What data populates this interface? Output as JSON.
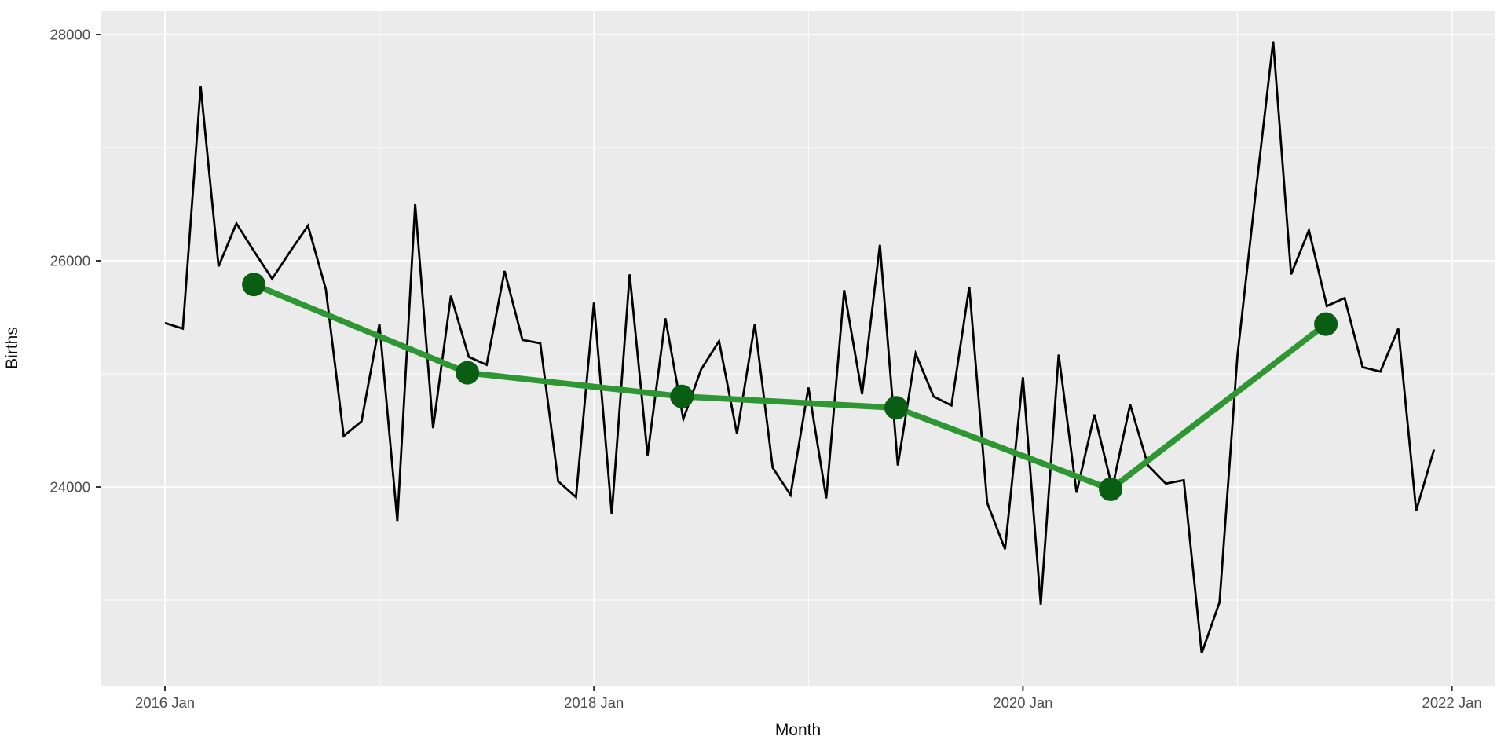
{
  "chart_data": {
    "type": "line",
    "title": "",
    "xlabel": "Month",
    "ylabel": "Births",
    "grid": true,
    "legend": "none",
    "panel_bg": "#EBEBEB",
    "gridline_color": "#FFFFFF",
    "tick_mark_color": "#333333",
    "tick_label_color": "#4d4d4d",
    "x_axis": {
      "tick_labels": [
        "2016 Jan",
        "2018 Jan",
        "2020 Jan",
        "2022 Jan"
      ],
      "tick_month_indices": [
        0,
        24,
        48,
        72
      ],
      "minor_month_indices": [
        12,
        36,
        60
      ],
      "xlim_month_indices": [
        -3.55,
        75.55
      ]
    },
    "y_axis": {
      "tick_labels": [
        "24000",
        "26000",
        "28000"
      ],
      "tick_values": [
        24000,
        26000,
        28000
      ],
      "minor_values": [
        23000,
        25000,
        27000
      ],
      "ylim": [
        22243,
        28208
      ]
    },
    "series": [
      {
        "name": "monthly-births",
        "type": "line",
        "color": "#000000",
        "months": [
          "2016-01",
          "2016-02",
          "2016-03",
          "2016-04",
          "2016-05",
          "2016-06",
          "2016-07",
          "2016-08",
          "2016-09",
          "2016-10",
          "2016-11",
          "2016-12",
          "2017-01",
          "2017-02",
          "2017-03",
          "2017-04",
          "2017-05",
          "2017-06",
          "2017-07",
          "2017-08",
          "2017-09",
          "2017-10",
          "2017-11",
          "2017-12",
          "2018-01",
          "2018-02",
          "2018-03",
          "2018-04",
          "2018-05",
          "2018-06",
          "2018-07",
          "2018-08",
          "2018-09",
          "2018-10",
          "2018-11",
          "2018-12",
          "2019-01",
          "2019-02",
          "2019-03",
          "2019-04",
          "2019-05",
          "2019-06",
          "2019-07",
          "2019-08",
          "2019-09",
          "2019-10",
          "2019-11",
          "2019-12",
          "2020-01",
          "2020-02",
          "2020-03",
          "2020-04",
          "2020-05",
          "2020-06",
          "2020-07",
          "2020-08",
          "2020-09",
          "2020-10",
          "2020-11",
          "2020-12",
          "2021-01",
          "2021-02",
          "2021-03",
          "2021-04",
          "2021-05",
          "2021-06",
          "2021-07",
          "2021-08",
          "2021-09",
          "2021-10",
          "2021-11",
          "2021-12"
        ],
        "values": [
          25450,
          25400,
          27540,
          25950,
          26330,
          26080,
          25840,
          26080,
          26310,
          25750,
          24450,
          24580,
          25440,
          23700,
          26500,
          24520,
          25690,
          25150,
          25080,
          25910,
          25300,
          25270,
          24050,
          23910,
          25630,
          23760,
          25880,
          24280,
          25490,
          24600,
          25040,
          25290,
          24470,
          25440,
          24170,
          23930,
          24880,
          23900,
          25740,
          24820,
          26140,
          24190,
          25180,
          24800,
          24720,
          25770,
          23860,
          23450,
          24970,
          22960,
          25170,
          23950,
          24640,
          23990,
          24730,
          24190,
          24030,
          24060,
          22530,
          22980,
          25160,
          26570,
          27940,
          25880,
          26270,
          25600,
          25670,
          25060,
          25020,
          25400,
          23790,
          24330
        ]
      },
      {
        "name": "yearly-mean",
        "type": "line+point",
        "line_color": "#2E9632",
        "point_color": "#0A5E14",
        "years": [
          2016,
          2017,
          2018,
          2019,
          2020,
          2021
        ],
        "x_month_indices": [
          4.97,
          16.92,
          28.92,
          40.91,
          52.91,
          64.95
        ],
        "values": [
          25790,
          25010,
          24800,
          24700,
          23980,
          25440
        ]
      }
    ]
  }
}
